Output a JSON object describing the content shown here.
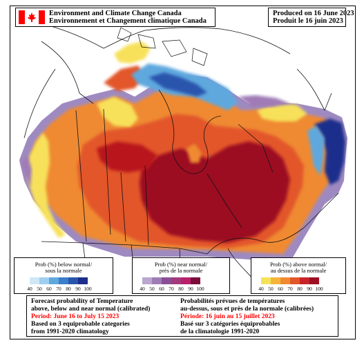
{
  "header": {
    "agency_en": "Environment and Climate Change Canada",
    "agency_fr": "Environnement et Changement climatique Canada",
    "produced_en": "Produced on 16 June 2023",
    "produced_fr": "Produit le 16 juin 2023"
  },
  "legends": [
    {
      "id": "below",
      "title_en": "Prob (%) below normal/",
      "title_fr": "sous la normale",
      "ticks": [
        "40",
        "50",
        "60",
        "70",
        "80",
        "90",
        "100"
      ],
      "colors": [
        "#cfe7f7",
        "#9fcff0",
        "#5fa8de",
        "#3b7ec9",
        "#2a55ad",
        "#1c2d8c"
      ]
    },
    {
      "id": "near",
      "title_en": "Prob (%) near normal/",
      "title_fr": "près de la normale",
      "ticks": [
        "40",
        "50",
        "60",
        "70",
        "80",
        "90",
        "100"
      ],
      "colors": [
        "#b9a7cf",
        "#a07cb6",
        "#8a4f96",
        "#a23a7c",
        "#b8206a",
        "#7a0d3c"
      ]
    },
    {
      "id": "above",
      "title_en": "Prob (%) above normal/",
      "title_fr": "au dessus de la normale",
      "ticks": [
        "40",
        "50",
        "60",
        "70",
        "80",
        "90",
        "100"
      ],
      "colors": [
        "#f7e15a",
        "#f4b53b",
        "#ef8a30",
        "#e2562a",
        "#c8232a",
        "#9c0f22"
      ]
    }
  ],
  "info": {
    "en_line1": "Forecast probability of Temperature",
    "en_line2": "above, below and near normal (calibrated)",
    "en_period": "Period: June 16 to July 15 2023",
    "en_line4": "Based on 3 equiprobable categories",
    "en_line5": "from 1991-2020 climatology",
    "fr_line1": "Probabilités prévues de températures",
    "fr_line2": "au-dessus, sous et près de la normale (calibrées)",
    "fr_period": "Période: 16 juin au 15 juillet 2023",
    "fr_line4": "Basé sur 3 catégories équiprobables",
    "fr_line5": "de la climatologie 1991-2020"
  },
  "colors": {
    "above_high": "#9c0f22",
    "above_mid": "#e2562a",
    "above_low": "#f7e15a",
    "below_high": "#1c2d8c",
    "near": "#a07cb6",
    "period_text": "#ff0000",
    "flag_red": "#ff0000"
  }
}
